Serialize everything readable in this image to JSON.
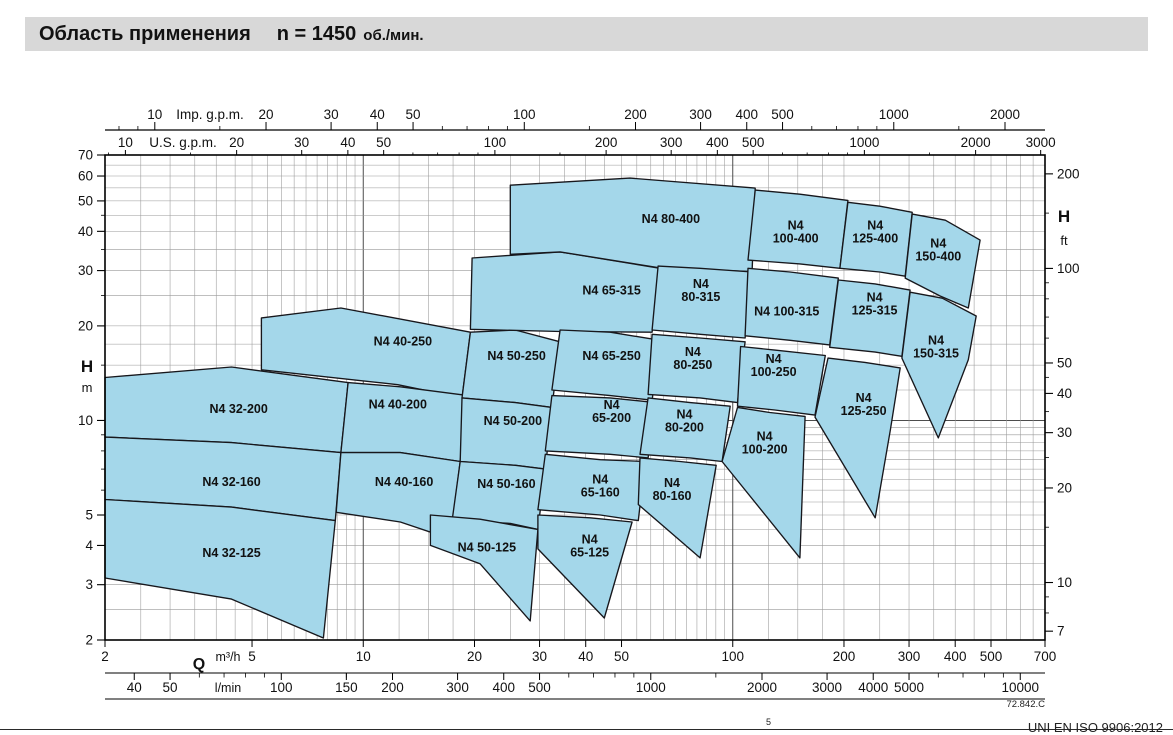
{
  "header": {
    "title": "Область применения",
    "speed": "n = 1450",
    "speed_unit": "об./мин."
  },
  "footer": {
    "drawing_number": "72.842.C",
    "footnote_mark": "5",
    "standard": "UNI EN ISO 9906:2012"
  },
  "chart_data": {
    "type": "area",
    "title": "Область применения n = 1450 об./мин.",
    "grid": true,
    "style": {
      "fill": "#a4d7ea",
      "stroke": "#17171c",
      "grid_minor": "#999999",
      "grid_major": "#4d4d4d"
    },
    "axes": {
      "q_m3h": {
        "label": "Q",
        "unit": "m³/h",
        "min": 2,
        "max": 700,
        "ticks": [
          2,
          5,
          10,
          20,
          30,
          40,
          50,
          100,
          200,
          300,
          400,
          500,
          700
        ]
      },
      "q_lmin": {
        "unit": "l/min",
        "per_m3h": 16.667,
        "ticks": [
          40,
          50,
          100,
          150,
          200,
          300,
          400,
          500,
          1000,
          2000,
          3000,
          4000,
          5000,
          10000
        ]
      },
      "q_imp_gpm": {
        "unit": "Imp. g.p.m.",
        "per_m3h": 3.666,
        "ticks": [
          10,
          20,
          30,
          40,
          50,
          100,
          200,
          300,
          400,
          500,
          1000,
          2000
        ]
      },
      "q_us_gpm": {
        "unit": "U.S. g.p.m.",
        "per_m3h": 4.403,
        "ticks": [
          10,
          20,
          30,
          40,
          50,
          100,
          200,
          300,
          400,
          500,
          1000,
          2000,
          3000
        ]
      },
      "h_m": {
        "label": "H",
        "unit": "m",
        "min": 2,
        "max": 70,
        "ticks": [
          2,
          3,
          4,
          5,
          10,
          20,
          30,
          40,
          50,
          60,
          70
        ]
      },
      "h_ft": {
        "label": "H",
        "unit": "ft",
        "per_m": 3.2808,
        "ticks": [
          7,
          10,
          20,
          30,
          40,
          50,
          100,
          200
        ]
      }
    },
    "regions": [
      {
        "name": "N4 32-200",
        "label": [
          "N4 32-200"
        ],
        "label_at": [
          4.6,
          10.9
        ],
        "points": [
          [
            2,
            13.7
          ],
          [
            4.4,
            14.8
          ],
          [
            9.1,
            13.2
          ],
          [
            8.7,
            7.9
          ],
          [
            4.4,
            8.5
          ],
          [
            2,
            8.85
          ]
        ]
      },
      {
        "name": "N4 32-160",
        "label": [
          "N4 32-160"
        ],
        "label_at": [
          4.4,
          6.4
        ],
        "points": [
          [
            2,
            8.85
          ],
          [
            4.4,
            8.5
          ],
          [
            8.7,
            7.9
          ],
          [
            8.4,
            4.8
          ],
          [
            4.4,
            5.3
          ],
          [
            2,
            5.6
          ]
        ]
      },
      {
        "name": "N4 32-125",
        "label": [
          "N4 32-125"
        ],
        "label_at": [
          4.4,
          3.8
        ],
        "points": [
          [
            2,
            5.6
          ],
          [
            4.4,
            5.3
          ],
          [
            8.4,
            4.8
          ],
          [
            7.8,
            2.03
          ],
          [
            4.4,
            2.7
          ],
          [
            2,
            3.15
          ]
        ]
      },
      {
        "name": "N4 40-250",
        "label": [
          "N4 40-250"
        ],
        "label_at": [
          12.8,
          17.9
        ],
        "points": [
          [
            5.3,
            21.2
          ],
          [
            8.7,
            22.8
          ],
          [
            19.5,
            19.1
          ],
          [
            18.5,
            11.8
          ],
          [
            12.4,
            13.0
          ],
          [
            5.3,
            14.5
          ]
        ]
      },
      {
        "name": "N4 40-200",
        "label": [
          "N4 40-200"
        ],
        "label_at": [
          12.4,
          11.3
        ],
        "points": [
          [
            9.1,
            13.2
          ],
          [
            12.6,
            12.8
          ],
          [
            19.2,
            12.0
          ],
          [
            18.3,
            7.4
          ],
          [
            12.6,
            7.9
          ],
          [
            8.7,
            7.9
          ]
        ]
      },
      {
        "name": "N4 40-160",
        "label": [
          "N4 40-160"
        ],
        "label_at": [
          12.9,
          6.4
        ],
        "points": [
          [
            8.7,
            7.9
          ],
          [
            12.6,
            7.9
          ],
          [
            18.3,
            7.4
          ],
          [
            17.2,
            4.2
          ],
          [
            12.6,
            4.75
          ],
          [
            8.45,
            5.1
          ]
        ]
      },
      {
        "name": "N4 50-250",
        "label": [
          "N4 50-250"
        ],
        "label_at": [
          26,
          16.1
        ],
        "points": [
          [
            19.5,
            19.1
          ],
          [
            25.8,
            19.4
          ],
          [
            34.1,
            17.8
          ],
          [
            32.4,
            11.0
          ],
          [
            25.8,
            11.4
          ],
          [
            18.5,
            11.8
          ]
        ]
      },
      {
        "name": "N4 50-200",
        "label": [
          "N4 50-200"
        ],
        "label_at": [
          25.4,
          10
        ],
        "points": [
          [
            18.5,
            11.8
          ],
          [
            25.8,
            11.4
          ],
          [
            32.4,
            11.0
          ],
          [
            31.1,
            7.0
          ],
          [
            25.8,
            7.2
          ],
          [
            18.3,
            7.4
          ]
        ]
      },
      {
        "name": "N4 50-160",
        "label": [
          "N4 50-160"
        ],
        "label_at": [
          24.4,
          6.3
        ],
        "points": [
          [
            18.3,
            7.4
          ],
          [
            25.8,
            7.2
          ],
          [
            31.1,
            7.0
          ],
          [
            29.7,
            4.5
          ],
          [
            25,
            4.7
          ],
          [
            17.4,
            4.8
          ]
        ]
      },
      {
        "name": "N4 50-125",
        "label": [
          "N4 50-125"
        ],
        "label_at": [
          21.6,
          3.95
        ],
        "points": [
          [
            15.2,
            5.0
          ],
          [
            20.7,
            4.85
          ],
          [
            29.7,
            4.5
          ],
          [
            28.3,
            2.3
          ],
          [
            20.7,
            3.5
          ],
          [
            15.2,
            4.0
          ]
        ]
      },
      {
        "name": "N4 65-315",
        "label": [
          "N4 65-315"
        ],
        "label_at": [
          47,
          26
        ],
        "points": [
          [
            19.7,
            32.9
          ],
          [
            34.1,
            34.4
          ],
          [
            63.6,
            30.5
          ],
          [
            60.5,
            19.1
          ],
          [
            34.1,
            19.2
          ],
          [
            19.5,
            19.5
          ]
        ]
      },
      {
        "name": "N4 65-250",
        "label": [
          "N4 65-250"
        ],
        "label_at": [
          47,
          16.1
        ],
        "points": [
          [
            34.1,
            19.4
          ],
          [
            46.6,
            19.1
          ],
          [
            63.6,
            18.0
          ],
          [
            60.5,
            11.6
          ],
          [
            46.6,
            12.0
          ],
          [
            32.4,
            12.5
          ]
        ]
      },
      {
        "name": "N4 65-200",
        "label": [
          "N4",
          "65-200"
        ],
        "label_at": [
          47,
          10.7
        ],
        "points": [
          [
            32.4,
            12.0
          ],
          [
            46.6,
            11.8
          ],
          [
            61.7,
            11.4
          ],
          [
            59.0,
            7.6
          ],
          [
            46.6,
            7.8
          ],
          [
            31.1,
            8.0
          ]
        ]
      },
      {
        "name": "N4 65-160",
        "label": [
          "N4",
          "65-160"
        ],
        "label_at": [
          43.8,
          6.2
        ],
        "points": [
          [
            31.1,
            7.8
          ],
          [
            43.8,
            7.5
          ],
          [
            57.9,
            7.4
          ],
          [
            55.5,
            4.8
          ],
          [
            43.8,
            5.0
          ],
          [
            29.7,
            5.2
          ]
        ]
      },
      {
        "name": "N4 65-125",
        "label": [
          "N4",
          "65-125"
        ],
        "label_at": [
          41,
          4.0
        ],
        "points": [
          [
            29.7,
            5.0
          ],
          [
            41.1,
            4.9
          ],
          [
            53.4,
            4.75
          ],
          [
            44.9,
            2.35
          ],
          [
            29.7,
            3.9
          ]
        ]
      },
      {
        "name": "N4 80-400",
        "label": [
          "N4 80-400"
        ],
        "label_at": [
          68,
          44
        ],
        "points": [
          [
            25,
            56.1
          ],
          [
            52.7,
            59.1
          ],
          [
            115,
            54.9
          ],
          [
            112.8,
            29.8
          ],
          [
            63.6,
            30.6
          ],
          [
            34.1,
            34.4
          ],
          [
            25,
            33.8
          ]
        ]
      },
      {
        "name": "N4 80-315",
        "label": [
          "N4",
          "80-315"
        ],
        "label_at": [
          82,
          26
        ],
        "points": [
          [
            62.8,
            31.0
          ],
          [
            81.6,
            30.5
          ],
          [
            112.8,
            29.7
          ],
          [
            108,
            18.3
          ],
          [
            81.6,
            18.8
          ],
          [
            60.5,
            19.4
          ]
        ]
      },
      {
        "name": "N4 80-250",
        "label": [
          "N4",
          "80-250"
        ],
        "label_at": [
          78,
          15.8
        ],
        "points": [
          [
            60.5,
            18.8
          ],
          [
            81.6,
            18.3
          ],
          [
            108,
            17.8
          ],
          [
            103,
            11.4
          ],
          [
            81.6,
            11.8
          ],
          [
            59,
            12.1
          ]
        ]
      },
      {
        "name": "N4 80-200",
        "label": [
          "N4",
          "80-200"
        ],
        "label_at": [
          74,
          10
        ],
        "points": [
          [
            59,
            11.8
          ],
          [
            76.7,
            11.4
          ],
          [
            98.4,
            11.1
          ],
          [
            93.6,
            7.4
          ],
          [
            76.7,
            7.6
          ],
          [
            56.1,
            7.8
          ]
        ]
      },
      {
        "name": "N4 80-160",
        "label": [
          "N4",
          "80-160"
        ],
        "label_at": [
          68.5,
          6.05
        ],
        "points": [
          [
            56.1,
            7.6
          ],
          [
            72,
            7.4
          ],
          [
            90.2,
            7.2
          ],
          [
            81.6,
            3.65
          ],
          [
            55.5,
            5.4
          ]
        ]
      },
      {
        "name": "N4 100-400",
        "label": [
          "N4",
          "100-400"
        ],
        "label_at": [
          148,
          40
        ],
        "points": [
          [
            115,
            54.1
          ],
          [
            152,
            52.5
          ],
          [
            205,
            50.2
          ],
          [
            195,
            30.5
          ],
          [
            152,
            31.5
          ],
          [
            110,
            32.4
          ]
        ]
      },
      {
        "name": "N4 100-315",
        "label": [
          "N4 100-315"
        ],
        "label_at": [
          140,
          22.3
        ],
        "points": [
          [
            110,
            30.5
          ],
          [
            143,
            29.7
          ],
          [
            193,
            28.4
          ],
          [
            183,
            17.4
          ],
          [
            143,
            18.0
          ],
          [
            108,
            18.6
          ]
        ]
      },
      {
        "name": "N4 100-250",
        "label": [
          "N4",
          "100-250"
        ],
        "label_at": [
          129,
          15
        ],
        "points": [
          [
            105,
            17.2
          ],
          [
            130,
            16.75
          ],
          [
            178,
            16.1
          ],
          [
            167,
            10.4
          ],
          [
            130,
            10.8
          ],
          [
            103,
            11.1
          ]
        ]
      },
      {
        "name": "N4 100-200",
        "label": [
          "N4",
          "100-200"
        ],
        "label_at": [
          122,
          8.5
        ],
        "points": [
          [
            103,
            11.0
          ],
          [
            126,
            10.6
          ],
          [
            157,
            10.3
          ],
          [
            152,
            3.65
          ],
          [
            93.6,
            7.4
          ]
        ]
      },
      {
        "name": "N4 125-400",
        "label": [
          "N4",
          "125-400"
        ],
        "label_at": [
          243,
          40
        ],
        "points": [
          [
            205,
            49.5
          ],
          [
            250,
            48.1
          ],
          [
            306,
            46.0
          ],
          [
            293,
            28.8
          ],
          [
            250,
            29.7
          ],
          [
            195,
            30.5
          ]
        ]
      },
      {
        "name": "N4 125-315",
        "label": [
          "N4",
          "125-315"
        ],
        "label_at": [
          242,
          23.6
        ],
        "points": [
          [
            193,
            28.0
          ],
          [
            243,
            27.2
          ],
          [
            302,
            26.0
          ],
          [
            287,
            16.0
          ],
          [
            243,
            16.5
          ],
          [
            183,
            17.1
          ]
        ]
      },
      {
        "name": "N4 125-250",
        "label": [
          "N4",
          "125-250"
        ],
        "label_at": [
          226,
          11.3
        ],
        "points": [
          [
            181,
            15.8
          ],
          [
            228,
            15.3
          ],
          [
            284,
            14.7
          ],
          [
            267,
            9.3
          ],
          [
            243,
            4.9
          ],
          [
            167,
            10.25
          ]
        ]
      },
      {
        "name": "N4 150-400",
        "label": [
          "N4",
          "150-400"
        ],
        "label_at": [
          360,
          35
        ],
        "points": [
          [
            306,
            45.4
          ],
          [
            376,
            43.4
          ],
          [
            467,
            37.5
          ],
          [
            434,
            22.8
          ],
          [
            364,
            24.9
          ],
          [
            293,
            28.4
          ]
        ]
      },
      {
        "name": "N4 150-315",
        "label": [
          "N4",
          "150-315"
        ],
        "label_at": [
          355,
          17.2
        ],
        "points": [
          [
            302,
            25.6
          ],
          [
            369,
            24.5
          ],
          [
            456,
            21.5
          ],
          [
            434,
            15.6
          ],
          [
            360,
            8.8
          ],
          [
            287,
            15.8
          ]
        ]
      }
    ],
    "drawing_number": "72.842.C"
  }
}
